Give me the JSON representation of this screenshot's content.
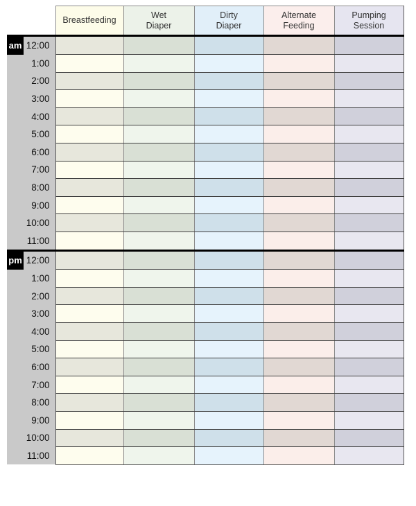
{
  "table": {
    "corner_label": "",
    "columns": [
      {
        "id": "breastfeeding",
        "label": "Breastfeeding",
        "label_lines": [
          "Breastfeeding"
        ],
        "header_bg": "#fdfce9",
        "row_plain_bg": "#fefdee",
        "row_shaded_bg": "#e7e7dc"
      },
      {
        "id": "wet-diaper",
        "label": "Wet Diaper",
        "label_lines": [
          "Wet",
          "Diaper"
        ],
        "header_bg": "#ecf2e9",
        "row_plain_bg": "#eff5ec",
        "row_shaded_bg": "#d9e0d5"
      },
      {
        "id": "dirty-diaper",
        "label": "Dirty Diaper",
        "label_lines": [
          "Dirty",
          "Diaper"
        ],
        "header_bg": "#e1eff9",
        "row_plain_bg": "#e6f3fc",
        "row_shaded_bg": "#cfe0ea"
      },
      {
        "id": "alternate-feeding",
        "label": "Alternate Feeding",
        "label_lines": [
          "Alternate",
          "Feeding"
        ],
        "header_bg": "#fbeeec",
        "row_plain_bg": "#fbeeea",
        "row_shaded_bg": "#e1d8d3"
      },
      {
        "id": "pumping-session",
        "label": "Pumping Session",
        "label_lines": [
          "Pumping",
          "Session"
        ],
        "header_bg": "#e6e5f0",
        "row_plain_bg": "#e8e7f0",
        "row_shaded_bg": "#d0d0db"
      }
    ],
    "sections": [
      {
        "id": "am",
        "label": "am",
        "times": [
          "12:00",
          "1:00",
          "2:00",
          "3:00",
          "4:00",
          "5:00",
          "6:00",
          "7:00",
          "8:00",
          "9:00",
          "10:00",
          "11:00"
        ]
      },
      {
        "id": "pm",
        "label": "pm",
        "times": [
          "12:00",
          "1:00",
          "2:00",
          "3:00",
          "4:00",
          "5:00",
          "6:00",
          "7:00",
          "8:00",
          "9:00",
          "10:00",
          "11:00"
        ]
      }
    ],
    "colors": {
      "time_column_bg": "#c9c9c9",
      "time_text": "#111111",
      "ampm_bg": "#000000",
      "ampm_text": "#ffffff",
      "header_text": "#333333",
      "row_border": "#3f3f3f",
      "column_border": "#8a8a8a",
      "outer_border": "#555555",
      "section_divider": "#000000",
      "page_bg": "#ffffff"
    }
  }
}
